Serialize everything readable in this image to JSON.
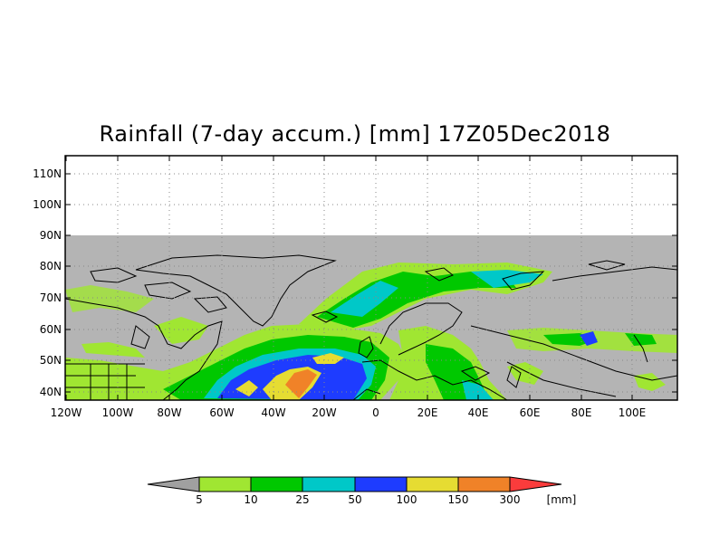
{
  "title": "Rainfall (7-day accum.) [mm] 17Z05Dec2018",
  "map": {
    "lat_labels": [
      "110N",
      "100N",
      "90N",
      "80N",
      "70N",
      "60N",
      "50N",
      "40N"
    ],
    "lon_labels": [
      "120W",
      "100W",
      "80W",
      "60W",
      "40W",
      "20W",
      "0",
      "20E",
      "40E",
      "60E",
      "80E",
      "100E"
    ]
  },
  "colorbar": {
    "labels": [
      "5",
      "10",
      "25",
      "50",
      "100",
      "150",
      "300"
    ],
    "unit": "[mm]",
    "colors": {
      "below": "#a0a0a0",
      "c1": "#a0e632",
      "c2": "#00c800",
      "c3": "#00c8c8",
      "c4": "#1e3cff",
      "c5": "#e6dc32",
      "c6": "#f08228",
      "above": "#fa3c3c"
    }
  },
  "colors": {
    "land_no_data": "#b4b4b4",
    "coastline": "#000000"
  }
}
